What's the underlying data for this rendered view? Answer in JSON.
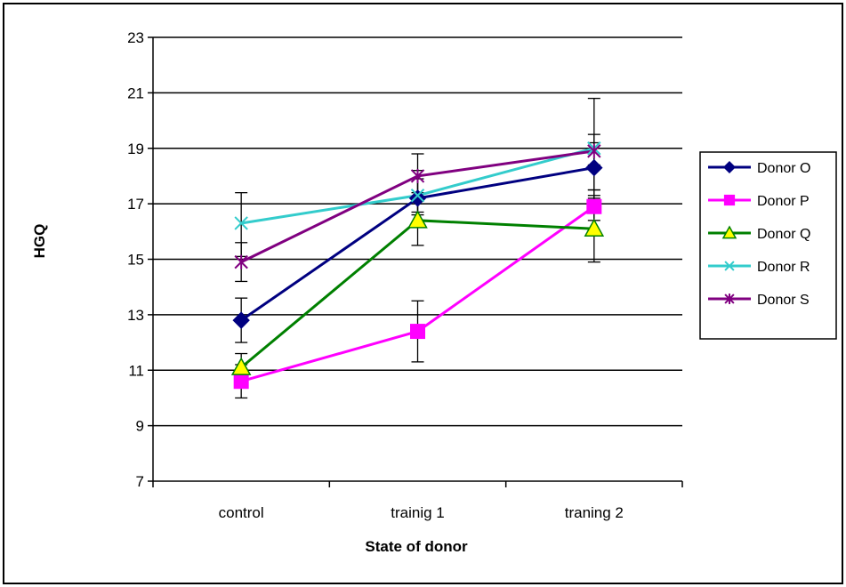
{
  "chart_data": {
    "type": "line",
    "categories": [
      "control",
      "trainig 1",
      "traning 2"
    ],
    "xlabel": "State of donor",
    "ylabel": "HGQ",
    "ylim": [
      7,
      23
    ],
    "yticks": [
      7,
      9,
      11,
      13,
      15,
      17,
      19,
      21,
      23
    ],
    "grid": "horizontal",
    "legend_position": "right",
    "series": [
      {
        "name": "Donor O",
        "color": "#000080",
        "marker": "diamond",
        "values": [
          12.8,
          17.2,
          18.3
        ],
        "error": [
          [
            12.0,
            13.6
          ],
          [
            16.6,
            18.2
          ],
          [
            17.5,
            19.2
          ]
        ]
      },
      {
        "name": "Donor P",
        "color": "#FF00FF",
        "marker": "square",
        "values": [
          10.6,
          12.4,
          16.9
        ],
        "error": [
          [
            10.0,
            11.2
          ],
          [
            11.3,
            13.5
          ],
          [
            16.4,
            17.5
          ]
        ]
      },
      {
        "name": "Donor Q",
        "color": "#008000",
        "marker": "triangle",
        "values": [
          11.1,
          16.4,
          16.1
        ],
        "error": [
          [
            10.6,
            11.6
          ],
          [
            15.5,
            17.4
          ],
          [
            14.9,
            17.3
          ]
        ]
      },
      {
        "name": "Donor R",
        "color": "#33CCCC",
        "marker": "x",
        "values": [
          16.3,
          17.3,
          19.0
        ],
        "error": [
          [
            15.1,
            17.4
          ],
          [
            16.7,
            17.9
          ],
          [
            17.2,
            20.8
          ]
        ]
      },
      {
        "name": "Donor S",
        "color": "#800080",
        "marker": "star",
        "values": [
          14.9,
          18.0,
          18.9
        ],
        "error": [
          [
            14.2,
            15.6
          ],
          [
            17.2,
            18.8
          ],
          [
            18.4,
            19.5
          ]
        ]
      }
    ]
  }
}
